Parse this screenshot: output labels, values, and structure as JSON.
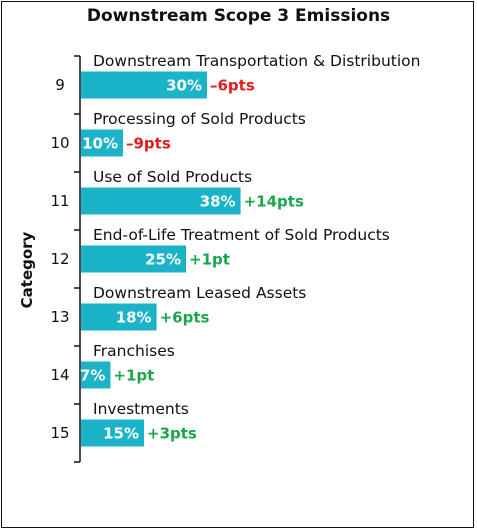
{
  "chart_data": {
    "type": "bar",
    "orientation": "horizontal",
    "title": "Downstream Scope 3 Emissions",
    "ylabel": "Category",
    "xlabel": "",
    "xlim": [
      0,
      40
    ],
    "grid": false,
    "categories": [
      "9",
      "10",
      "11",
      "12",
      "13",
      "14",
      "15"
    ],
    "category_names": [
      "Downstream Transportation & Distribution",
      "Processing of Sold Products",
      "Use of Sold Products",
      "End-of-Life Treatment of Sold Products",
      "Downstream Leased Assets",
      "Franchises",
      "Investments"
    ],
    "values": [
      30,
      10,
      38,
      25,
      18,
      7,
      15
    ],
    "value_labels": [
      "30%",
      "10%",
      "38%",
      "25%",
      "18%",
      "7%",
      "15%"
    ],
    "deltas": [
      -6,
      -9,
      14,
      1,
      6,
      1,
      3
    ],
    "delta_labels": [
      "–6pts",
      "–9pts",
      "+14pts",
      "+1pt",
      "+6pts",
      "+1pt",
      "+3pts"
    ],
    "colors": {
      "bar": "#1ab3c8",
      "positive": "#1aa64b",
      "negative": "#e01c1c",
      "axis": "#111111"
    }
  }
}
